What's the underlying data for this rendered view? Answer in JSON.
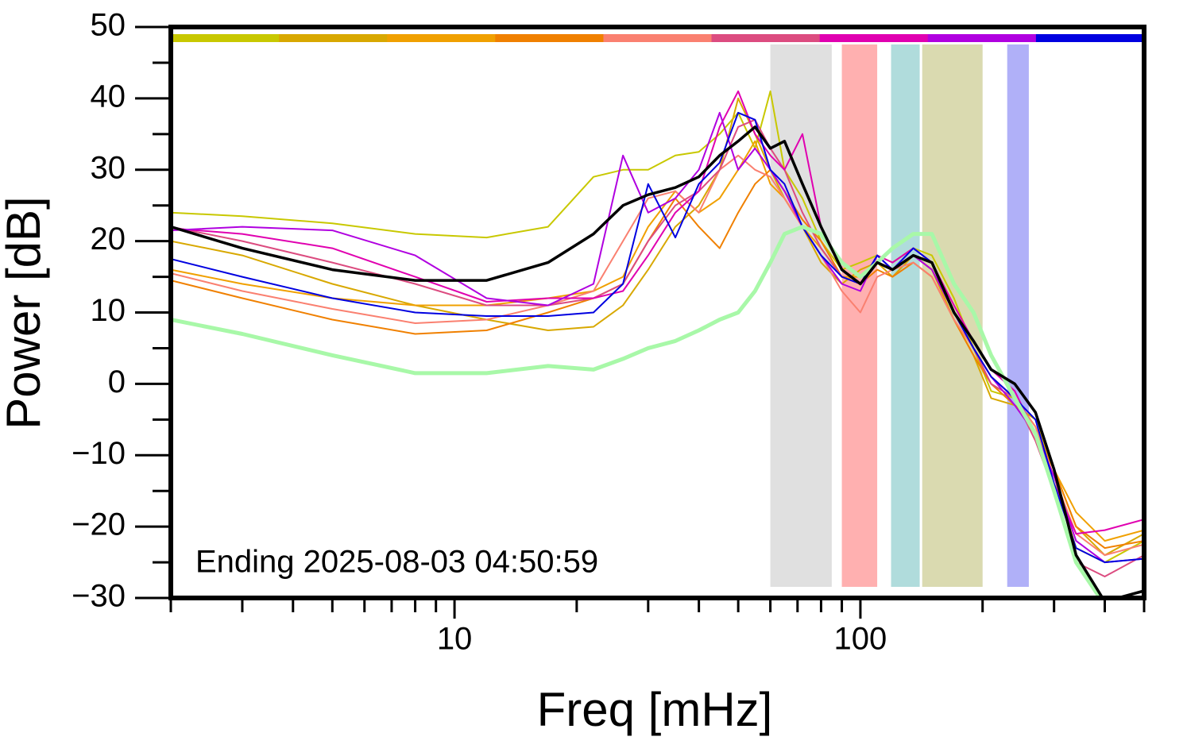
{
  "chart_data": {
    "type": "line",
    "xlabel": "Freq [mHz]",
    "ylabel": "Power [dB]",
    "annotation": "Ending 2025-08-03 04:50:59",
    "log_x": true,
    "xlim": [
      2,
      500
    ],
    "ylim": [
      -30,
      50
    ],
    "xticks": [
      10,
      100
    ],
    "xminor_ticks": [
      2,
      3,
      4,
      5,
      6,
      7,
      8,
      9,
      20,
      30,
      40,
      50,
      60,
      70,
      80,
      90,
      200,
      300,
      400,
      500
    ],
    "yticks": [
      {
        "value": -30,
        "label": "−30"
      },
      {
        "value": -20,
        "label": "−20"
      },
      {
        "value": -10,
        "label": "−10"
      },
      0,
      10,
      20,
      30,
      40,
      50
    ],
    "yminor_ticks": [
      -25,
      -15,
      -5,
      5,
      15,
      25,
      35,
      45
    ],
    "bands": [
      {
        "x": [
          60,
          85
        ],
        "color": "#e0e0e0"
      },
      {
        "x": [
          90,
          110
        ],
        "color": "#ffb0b0"
      },
      {
        "x": [
          119,
          140
        ],
        "color": "#b0dcdc"
      },
      {
        "x": [
          142,
          200
        ],
        "color": "#dadab0"
      },
      {
        "x": [
          230,
          260
        ],
        "color": "#b0b0f8"
      }
    ],
    "x": [
      2,
      3,
      5,
      8,
      12,
      17,
      22,
      26,
      30,
      35,
      40,
      45,
      50,
      55,
      60,
      65,
      72,
      80,
      90,
      100,
      110,
      120,
      135,
      150,
      170,
      190,
      210,
      240,
      270,
      300,
      340,
      400,
      500
    ],
    "series": [
      {
        "color": "#c8c800",
        "strip": true,
        "width": 2,
        "values": [
          24,
          23.5,
          22.5,
          21,
          20.5,
          22,
          29,
          30,
          30,
          32,
          32.5,
          35,
          38,
          33,
          41,
          30,
          26,
          20,
          16,
          17,
          18,
          17,
          19,
          18,
          12,
          5,
          -1,
          -2,
          -6,
          -13,
          -23,
          -25,
          -22
        ]
      },
      {
        "color": "#d8a800",
        "strip": true,
        "width": 2,
        "values": [
          20,
          18,
          14,
          11,
          9,
          7.5,
          8,
          11,
          16,
          22,
          25,
          30,
          40,
          35,
          30,
          26,
          22,
          17,
          14,
          16,
          17,
          15,
          18,
          16,
          9,
          4,
          -2,
          -3,
          -5,
          -12,
          -20,
          -24,
          -21
        ]
      },
      {
        "color": "#f0a000",
        "strip": true,
        "width": 2,
        "values": [
          16,
          14,
          12,
          11,
          11,
          12,
          13,
          15,
          22,
          27,
          24,
          26,
          30,
          34,
          28,
          26,
          22,
          19,
          15,
          15,
          17,
          16,
          18,
          16,
          10,
          5,
          1,
          -2,
          -6,
          -12,
          -18,
          -22,
          -20.5
        ]
      },
      {
        "color": "#f08000",
        "strip": true,
        "width": 2,
        "values": [
          14.5,
          12,
          9,
          7,
          7.5,
          10,
          12,
          14,
          20,
          26,
          22,
          19,
          24,
          28,
          30,
          27,
          23,
          20,
          15,
          14,
          16,
          15,
          17,
          15,
          9,
          4,
          0,
          -3,
          -7,
          -12,
          -20,
          -23,
          -22
        ]
      },
      {
        "color": "#fa8070",
        "strip": true,
        "width": 2,
        "values": [
          15.5,
          13,
          10.5,
          8.5,
          9,
          11,
          13,
          20,
          26,
          27,
          24,
          30,
          32,
          30,
          29,
          26,
          22,
          18,
          13,
          10,
          15,
          16,
          17,
          15,
          9,
          5,
          1,
          -2,
          -6,
          -13,
          -21,
          -24,
          -22.5
        ]
      },
      {
        "color": "#dc4c80",
        "strip": true,
        "width": 2,
        "values": [
          22,
          20,
          17,
          14,
          11,
          11,
          12,
          14,
          20,
          25,
          27,
          30,
          36,
          37,
          33,
          30,
          24,
          19,
          15,
          14,
          18,
          16,
          19,
          17,
          10,
          5,
          0,
          -2,
          -8,
          -15,
          -25,
          -27,
          -24
        ]
      },
      {
        "color": "#e000b0",
        "strip": true,
        "width": 2,
        "values": [
          21.8,
          21,
          19,
          15,
          11.5,
          12,
          12,
          13,
          18,
          24,
          27,
          36,
          41,
          35,
          32,
          30,
          35,
          22,
          16,
          14,
          18,
          17,
          19,
          17,
          11,
          6,
          2,
          -1,
          -7,
          -14,
          -21,
          -20.5,
          -19
        ]
      },
      {
        "color": "#b000e0",
        "strip": true,
        "width": 2,
        "values": [
          21.5,
          22,
          21.5,
          18,
          12,
          11,
          14,
          32,
          24,
          26,
          30,
          38,
          30,
          33,
          30,
          27,
          22,
          18,
          14,
          13,
          18,
          16,
          18,
          16,
          10,
          5,
          1,
          -3,
          -7,
          -13,
          -22,
          -25,
          -24.5
        ]
      },
      {
        "color": "#0000e0",
        "strip": true,
        "width": 2,
        "values": [
          17.5,
          15,
          12,
          10,
          9.5,
          9.5,
          10,
          14,
          28,
          20.5,
          28,
          31,
          38,
          37,
          30,
          28,
          22,
          18,
          15,
          14,
          18,
          16,
          19,
          17,
          10,
          5,
          1,
          -2,
          -5,
          -14,
          -23,
          -25,
          -24.5
        ]
      },
      {
        "color": "#a8f8a8",
        "strip": false,
        "width": 5,
        "values": [
          9,
          7,
          4,
          1.5,
          1.5,
          2.5,
          2,
          3.5,
          5,
          6,
          7.5,
          9,
          10,
          13,
          17,
          21,
          22,
          21,
          17,
          15,
          17,
          19,
          21,
          21,
          14,
          10,
          4,
          -2,
          -7,
          -15,
          -25,
          -31,
          -30
        ]
      },
      {
        "color": "#000000",
        "strip": false,
        "width": 3.5,
        "values": [
          22,
          19,
          16,
          14.5,
          14.5,
          17,
          21,
          25,
          26.5,
          27.5,
          29,
          32,
          34,
          36,
          33,
          34,
          28,
          22,
          16,
          14,
          17,
          16,
          18,
          17,
          10,
          6,
          2,
          0,
          -4,
          -12,
          -24,
          -30.5,
          -29
        ]
      }
    ]
  }
}
